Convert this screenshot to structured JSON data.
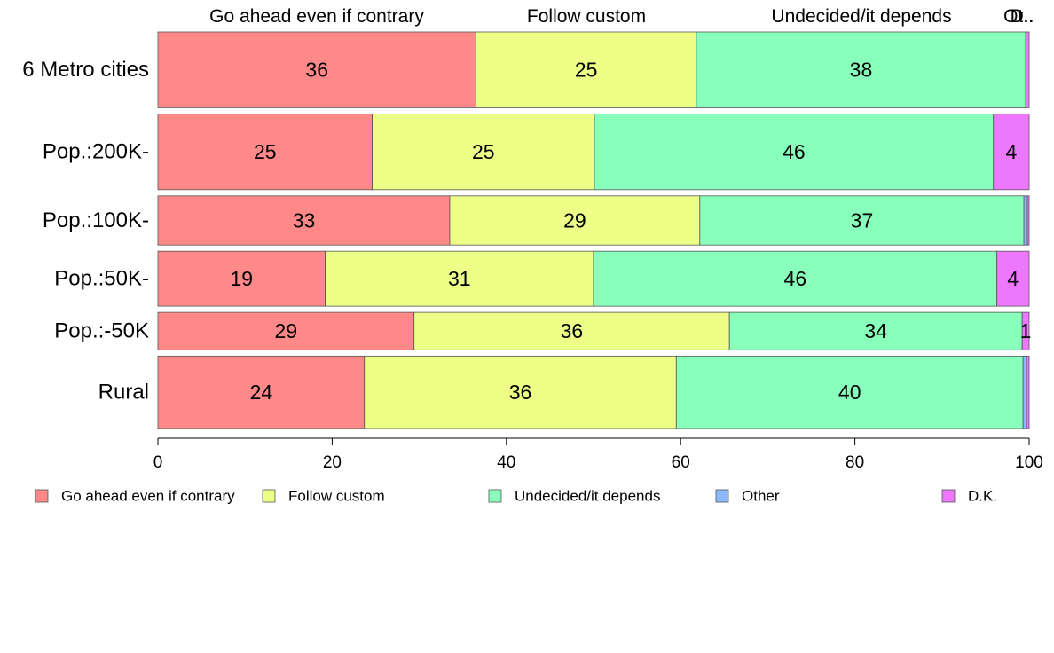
{
  "chart_data": {
    "type": "bar",
    "orientation": "horizontal",
    "stacked": true,
    "categories": [
      "6 Metro cities",
      "Pop.:200K-",
      "Pop.:100K-",
      "Pop.:50K-",
      "Pop.:-50K",
      "Rural"
    ],
    "category_weights": [
      91,
      91,
      59,
      66,
      45,
      87
    ],
    "series": [
      {
        "name": "Go ahead even if contrary",
        "color": "#ff8888",
        "values": [
          36.5,
          24.6,
          33.5,
          19.2,
          29.4,
          23.7
        ],
        "labels": [
          "36",
          "25",
          "33",
          "19",
          "29",
          "24"
        ]
      },
      {
        "name": "Follow custom",
        "color": "#eeff88",
        "values": [
          25.3,
          25.5,
          28.7,
          30.8,
          36.2,
          35.8
        ],
        "labels": [
          "25",
          "25",
          "29",
          "31",
          "36",
          "36"
        ]
      },
      {
        "name": "Undecided/it depends",
        "color": "#88ffbb",
        "values": [
          37.8,
          45.8,
          37.2,
          46.3,
          33.6,
          39.8
        ],
        "labels": [
          "38",
          "46",
          "37",
          "46",
          "34",
          "40"
        ]
      },
      {
        "name": "Other",
        "color": "#88bbff",
        "values": [
          0.0,
          0.0,
          0.4,
          0.0,
          0.0,
          0.4
        ],
        "labels": [
          "",
          "",
          "",
          "",
          "",
          ""
        ]
      },
      {
        "name": "D.K.",
        "color": "#ee77ff",
        "values": [
          0.4,
          4.1,
          0.2,
          3.7,
          0.8,
          0.3
        ],
        "labels": [
          "",
          "4",
          "",
          "4",
          "1",
          ""
        ]
      }
    ],
    "top_labels": [
      "Go ahead even if contrary",
      "Follow custom",
      "Undecided/it depends",
      "Other",
      "D.K."
    ],
    "top_labels_display": [
      "Go ahead even if contrary",
      "Follow custom",
      "Undecided/it depends",
      "Ot..",
      "D.."
    ],
    "xlim": [
      0,
      100
    ],
    "x_ticks": [
      0,
      20,
      40,
      60,
      80,
      100
    ],
    "title": "",
    "xlabel": "",
    "ylabel": "",
    "grid": false,
    "legend_position": "bottom"
  }
}
